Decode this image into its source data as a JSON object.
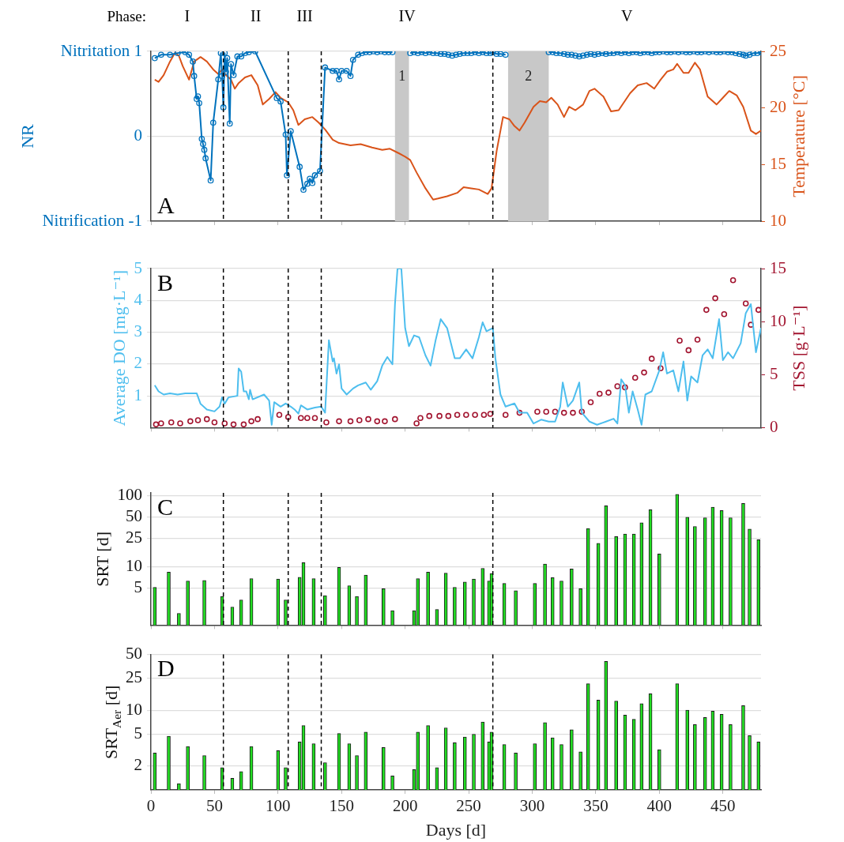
{
  "chart_data": [
    {
      "type": "line",
      "annotations": [
        "A",
        "Phase:",
        "I",
        "II",
        "III",
        "IV",
        "V"
      ],
      "ylabel": "NR",
      "y2label": "Temperature [°C]",
      "xlim": [
        0,
        480
      ],
      "xticks": [
        0,
        50,
        100,
        150,
        200,
        250,
        300,
        350,
        400,
        450
      ],
      "ylim": [
        -1,
        1
      ],
      "yticks": [
        {
          "value": -1,
          "label": "Nitrification -1"
        },
        0,
        {
          "value": 1,
          "label": "Nitritation 1"
        }
      ],
      "y2lim": [
        10,
        25
      ],
      "y2ticks": [
        10,
        15,
        20,
        25
      ],
      "grid": "y",
      "tick_labels": "y",
      "ref_lines": [
        {
          "axis": "x",
          "value": 57,
          "color": "#000000",
          "line_style": "dashed"
        },
        {
          "axis": "x",
          "value": 108,
          "color": "#000000",
          "line_style": "dashed"
        },
        {
          "axis": "x",
          "value": 134,
          "color": "#000000",
          "line_style": "dashed"
        },
        {
          "axis": "x",
          "value": 269,
          "color": "#000000",
          "line_style": "dashed"
        }
      ],
      "bands": [
        {
          "axis": "x",
          "from": 192,
          "to": 203,
          "label": "1",
          "color": "#c8c8c8"
        },
        {
          "axis": "x",
          "from": 281,
          "to": 313,
          "label": "2",
          "color": "#c8c8c8"
        }
      ],
      "series": [
        {
          "marker": "circle",
          "color": "#0072bd",
          "x": [
            3,
            8,
            15,
            21,
            27,
            30,
            33,
            34,
            36,
            37,
            38,
            40,
            41,
            42,
            43,
            47,
            49,
            53,
            55,
            56,
            57,
            58,
            59,
            60,
            62,
            63,
            65,
            68,
            71,
            74,
            77,
            82,
            99,
            102,
            106,
            107,
            110,
            117,
            120,
            123,
            125,
            127,
            129,
            133,
            137,
            143,
            146,
            148,
            150,
            154,
            157,
            159,
            163,
            166,
            169,
            172,
            175,
            178,
            181,
            184,
            187,
            190,
            196,
            204,
            207,
            210,
            213,
            216,
            219,
            222,
            225,
            228,
            231,
            234,
            237,
            240,
            243,
            246,
            249,
            252,
            255,
            258,
            261,
            264,
            267,
            269,
            272,
            275,
            279,
            295,
            313,
            316,
            319,
            322,
            325,
            328,
            331,
            334,
            337,
            340,
            343,
            346,
            349,
            352,
            355,
            358,
            361,
            364,
            367,
            370,
            373,
            376,
            379,
            382,
            385,
            388,
            391,
            394,
            397,
            400,
            403,
            406,
            409,
            412,
            415,
            418,
            421,
            424,
            427,
            430,
            433,
            436,
            439,
            442,
            445,
            448,
            451,
            454,
            457,
            460,
            463,
            466,
            468,
            471,
            474,
            477,
            480
          ],
          "values": [
            0.92,
            0.96,
            0.96,
            0.98,
            0.99,
            0.96,
            0.88,
            0.71,
            0.44,
            0.47,
            0.39,
            -0.03,
            -0.09,
            -0.16,
            -0.26,
            -0.52,
            0.16,
            0.67,
            0.98,
            0.71,
            0.34,
            0.98,
            0.76,
            0.92,
            0.15,
            0.85,
            0.72,
            0.94,
            0.94,
            0.98,
            0.99,
            1.0,
            0.45,
            0.41,
            0.02,
            -0.46,
            0.06,
            -0.36,
            -0.63,
            -0.56,
            -0.5,
            -0.55,
            -0.46,
            -0.41,
            0.81,
            0.77,
            0.77,
            0.67,
            0.77,
            0.77,
            0.71,
            0.9,
            0.96,
            0.98,
            0.99,
            0.99,
            1.0,
            0.99,
            1.0,
            0.99,
            0.99,
            0.99,
            null,
            0.98,
            0.99,
            0.98,
            0.99,
            0.98,
            0.99,
            0.98,
            0.98,
            0.97,
            0.97,
            0.96,
            0.95,
            0.96,
            0.97,
            0.98,
            0.98,
            0.98,
            0.99,
            0.98,
            0.99,
            0.98,
            0.98,
            0.99,
            0.97,
            0.97,
            0.96,
            null,
            0.99,
            0.99,
            0.98,
            0.98,
            0.97,
            0.96,
            0.96,
            0.95,
            0.94,
            0.95,
            0.96,
            0.97,
            0.96,
            0.97,
            0.98,
            0.97,
            0.98,
            0.98,
            0.99,
            0.98,
            0.99,
            0.98,
            0.99,
            0.99,
            0.98,
            0.99,
            0.99,
            0.98,
            0.99,
            0.99,
            1.0,
            0.99,
            0.99,
            1.0,
            0.99,
            1.0,
            0.99,
            0.99,
            1.0,
            0.99,
            0.99,
            1.0,
            0.99,
            1.0,
            0.99,
            0.99,
            1.0,
            0.99,
            0.99,
            0.98,
            0.97,
            0.96,
            0.95,
            0.96,
            0.98,
            0.98,
            0.99
          ]
        },
        {
          "marker": "none",
          "axis": "y2",
          "color": "#d95319",
          "x": [
            3,
            6,
            10,
            15,
            19,
            22,
            25,
            30,
            34,
            39,
            44,
            49,
            53,
            56,
            59,
            63,
            66,
            69,
            74,
            79,
            84,
            88,
            93,
            98,
            102,
            108,
            112,
            116,
            121,
            127,
            132,
            137,
            143,
            148,
            157,
            165,
            174,
            182,
            188,
            195,
            200,
            204,
            209,
            216,
            222,
            226,
            233,
            241,
            246,
            252,
            258,
            265,
            268,
            272,
            277,
            282,
            286,
            290,
            294,
            301,
            306,
            311,
            315,
            320,
            325,
            329,
            334,
            340,
            345,
            349,
            356,
            362,
            368,
            377,
            383,
            390,
            396,
            401,
            406,
            411,
            414,
            419,
            423,
            428,
            432,
            438,
            445,
            450,
            455,
            461,
            466,
            472,
            476,
            480
          ],
          "values": [
            22.5,
            22.3,
            22.9,
            24.1,
            24.9,
            24.6,
            23.7,
            22.5,
            24.1,
            24.5,
            24.1,
            23.4,
            23.0,
            23.4,
            22.9,
            22.5,
            21.7,
            22.2,
            22.7,
            22.9,
            22.0,
            20.3,
            20.8,
            21.4,
            20.9,
            20.5,
            19.8,
            18.5,
            19.0,
            19.2,
            18.7,
            18.1,
            17.2,
            16.9,
            16.7,
            16.8,
            16.5,
            16.3,
            16.4,
            16.0,
            15.7,
            15.4,
            14.3,
            12.9,
            11.9,
            12.0,
            12.2,
            12.5,
            13.0,
            12.9,
            12.8,
            12.4,
            12.9,
            16.2,
            19.2,
            19.0,
            18.4,
            18.0,
            18.7,
            20.1,
            20.6,
            20.5,
            20.9,
            20.3,
            19.2,
            20.1,
            19.8,
            20.3,
            21.5,
            21.7,
            21.0,
            19.7,
            19.8,
            21.3,
            22.0,
            22.2,
            21.7,
            22.5,
            23.2,
            23.4,
            23.9,
            23.1,
            23.1,
            24.0,
            23.4,
            21.0,
            20.3,
            20.9,
            21.5,
            21.1,
            20.1,
            18.0,
            17.7,
            18.0
          ]
        }
      ]
    },
    {
      "type": "line",
      "annotations": [
        "B"
      ],
      "ylabel": "Average DO [mg·L⁻¹]",
      "y2label": "TSS [g·L⁻¹]",
      "xlim": [
        0,
        480
      ],
      "xticks": [
        0,
        50,
        100,
        150,
        200,
        250,
        300,
        350,
        400,
        450
      ],
      "ylim": [
        0,
        5
      ],
      "yticks": [
        1,
        2,
        3,
        4,
        5
      ],
      "y2lim": [
        0,
        15
      ],
      "y2ticks": [
        0,
        5,
        10,
        15
      ],
      "grid": "y",
      "tick_labels": "y",
      "ref_lines": [
        {
          "axis": "x",
          "value": 57,
          "color": "#000000",
          "line_style": "dashed"
        },
        {
          "axis": "x",
          "value": 108,
          "color": "#000000",
          "line_style": "dashed"
        },
        {
          "axis": "x",
          "value": 134,
          "color": "#000000",
          "line_style": "dashed"
        },
        {
          "axis": "x",
          "value": 269,
          "color": "#000000",
          "line_style": "dashed"
        }
      ],
      "series": [
        {
          "marker": "none",
          "color": "#4dbeee",
          "x": [
            3,
            6,
            10,
            15,
            21,
            27,
            36,
            39,
            44,
            50,
            54,
            56,
            58,
            61,
            68,
            69,
            71,
            73,
            75,
            77,
            78,
            80,
            89,
            93,
            95,
            97,
            102,
            106,
            110,
            113,
            116,
            118,
            123,
            129,
            134,
            137,
            140,
            143,
            144,
            146,
            148,
            150,
            154,
            159,
            163,
            169,
            173,
            178,
            182,
            186,
            190,
            192,
            194,
            197,
            200,
            203,
            207,
            211,
            216,
            220,
            224,
            228,
            233,
            239,
            243,
            248,
            253,
            258,
            261,
            264,
            269,
            271,
            275,
            279,
            286,
            290,
            296,
            301,
            307,
            313,
            318,
            322,
            324,
            328,
            332,
            337,
            339,
            345,
            351,
            358,
            364,
            367,
            370,
            373,
            376,
            379,
            383,
            386,
            389,
            394,
            400,
            403,
            406,
            411,
            415,
            419,
            422,
            425,
            430,
            434,
            438,
            442,
            447,
            450,
            454,
            458,
            464,
            468,
            472,
            476,
            480
          ],
          "values": [
            1.33,
            1.14,
            1.04,
            1.08,
            1.04,
            1.08,
            1.08,
            0.75,
            0.57,
            0.51,
            0.66,
            0.95,
            0.75,
            0.95,
            1.0,
            1.86,
            1.76,
            1.14,
            1.14,
            0.89,
            1.19,
            0.89,
            1.04,
            0.85,
            0.09,
            0.8,
            0.66,
            0.76,
            0.66,
            0.57,
            0.44,
            0.7,
            0.57,
            0.63,
            0.66,
            0.47,
            2.75,
            2.08,
            2.18,
            1.7,
            1.99,
            1.23,
            1.04,
            1.23,
            1.33,
            1.42,
            1.19,
            1.46,
            1.95,
            2.22,
            1.99,
            3.88,
            5.0,
            5.0,
            3.13,
            2.56,
            2.9,
            2.84,
            2.27,
            1.95,
            2.75,
            3.41,
            3.13,
            2.18,
            2.18,
            2.46,
            2.18,
            2.84,
            3.31,
            3.03,
            3.13,
            2.18,
            1.04,
            0.66,
            0.76,
            0.47,
            0.47,
            0.13,
            0.25,
            0.19,
            0.19,
            0.66,
            1.42,
            0.66,
            0.85,
            1.42,
            0.47,
            0.19,
            0.09,
            0.19,
            0.28,
            0.13,
            1.52,
            1.33,
            0.47,
            1.14,
            0.57,
            0.09,
            1.04,
            1.14,
            1.8,
            2.37,
            1.7,
            1.8,
            1.14,
            2.08,
            0.85,
            1.61,
            1.42,
            2.27,
            2.46,
            2.18,
            3.41,
            2.12,
            2.37,
            2.18,
            2.65,
            3.6,
            3.88,
            2.37,
            3.13
          ]
        },
        {
          "type": "scatter",
          "marker": "circle",
          "axis": "y2",
          "color": "#a2142f",
          "x": [
            4,
            8,
            16,
            23,
            31,
            37,
            44,
            50,
            58,
            65,
            73,
            79,
            84,
            101,
            108,
            118,
            123,
            129,
            138,
            148,
            157,
            164,
            171,
            178,
            184,
            192,
            209,
            212,
            219,
            227,
            234,
            241,
            248,
            255,
            262,
            267,
            279,
            290,
            304,
            311,
            318,
            325,
            332,
            339,
            346,
            353,
            360,
            367,
            373,
            381,
            388,
            394,
            401,
            416,
            423,
            430,
            437,
            444,
            451,
            458,
            468,
            472,
            478
          ],
          "values": [
            0.3,
            0.4,
            0.5,
            0.4,
            0.6,
            0.7,
            0.8,
            0.5,
            0.4,
            0.3,
            0.3,
            0.6,
            0.8,
            1.2,
            1.0,
            0.9,
            0.9,
            0.9,
            0.5,
            0.6,
            0.6,
            0.7,
            0.8,
            0.6,
            0.6,
            0.8,
            0.4,
            0.9,
            1.1,
            1.1,
            1.1,
            1.2,
            1.2,
            1.2,
            1.2,
            1.3,
            1.2,
            1.4,
            1.5,
            1.5,
            1.5,
            1.4,
            1.4,
            1.5,
            2.4,
            3.2,
            3.3,
            3.9,
            3.8,
            4.7,
            5.2,
            6.5,
            5.6,
            8.2,
            7.3,
            8.3,
            11.1,
            12.2,
            10.7,
            13.9,
            11.7,
            9.7,
            11.1
          ]
        }
      ]
    },
    {
      "type": "bar",
      "annotations": [
        "C"
      ],
      "ylabel": "SRT [d]",
      "xlim": [
        0,
        480
      ],
      "xticks": [
        0,
        50,
        100,
        150,
        200,
        250,
        300,
        350,
        400,
        450
      ],
      "log": "y",
      "ylim": [
        1.5,
        110
      ],
      "yticks": [
        5,
        10,
        25,
        50,
        100
      ],
      "grid": "y",
      "tick_labels": "y",
      "ref_lines": [
        {
          "axis": "x",
          "value": 57,
          "color": "#000000",
          "line_style": "dashed"
        },
        {
          "axis": "x",
          "value": 108,
          "color": "#000000",
          "line_style": "dashed"
        },
        {
          "axis": "x",
          "value": 134,
          "color": "#000000",
          "line_style": "dashed"
        },
        {
          "axis": "x",
          "value": 269,
          "color": "#000000",
          "line_style": "dashed"
        }
      ],
      "color": "#22dd22",
      "x": [
        3,
        14,
        22,
        29,
        42,
        56,
        64,
        71,
        79,
        100,
        106,
        117,
        120,
        128,
        137,
        148,
        156,
        162,
        169,
        183,
        190,
        207,
        210,
        218,
        225,
        232,
        239,
        247,
        254,
        261,
        266,
        268,
        278,
        287,
        302,
        310,
        316,
        323,
        331,
        338,
        344,
        352,
        358,
        366,
        373,
        380,
        386,
        393,
        400,
        414,
        422,
        428,
        436,
        442,
        449,
        456,
        466,
        471,
        478
      ],
      "values": [
        5.1,
        8.4,
        2.2,
        6.3,
        6.4,
        3.8,
        2.7,
        3.4,
        6.8,
        6.7,
        3.4,
        7.1,
        11.4,
        6.8,
        3.9,
        9.8,
        5.4,
        3.8,
        7.6,
        4.9,
        2.4,
        2.4,
        6.8,
        8.4,
        2.5,
        8.1,
        5.1,
        6.1,
        6.7,
        9.5,
        6.3,
        8.0,
        5.8,
        4.6,
        5.8,
        10.9,
        7.0,
        6.3,
        9.3,
        4.9,
        34.5,
        21.4,
        72.4,
        26.6,
        29,
        29,
        41.8,
        63.5,
        15.1,
        105,
        50,
        37,
        49,
        69,
        62,
        49,
        78,
        34,
        24
      ]
    },
    {
      "type": "bar",
      "annotations": [
        "D"
      ],
      "ylabel": "SRT$_{Aer}$ [d]",
      "xlabel": "Days [d]",
      "xlim": [
        0,
        480
      ],
      "xticks": [
        0,
        50,
        100,
        150,
        200,
        250,
        300,
        350,
        400,
        450
      ],
      "log": "y",
      "ylim": [
        1,
        50
      ],
      "yticks": [
        2,
        5,
        10,
        25,
        50
      ],
      "grid": "y",
      "ref_lines": [
        {
          "axis": "x",
          "value": 57,
          "color": "#000000",
          "line_style": "dashed"
        },
        {
          "axis": "x",
          "value": 108,
          "color": "#000000",
          "line_style": "dashed"
        },
        {
          "axis": "x",
          "value": 134,
          "color": "#000000",
          "line_style": "dashed"
        },
        {
          "axis": "x",
          "value": 269,
          "color": "#000000",
          "line_style": "dashed"
        }
      ],
      "color": "#22dd22",
      "x": [
        3,
        14,
        22,
        29,
        42,
        56,
        64,
        71,
        79,
        100,
        106,
        117,
        120,
        128,
        137,
        148,
        156,
        162,
        169,
        183,
        190,
        207,
        210,
        218,
        225,
        232,
        239,
        247,
        254,
        261,
        266,
        268,
        278,
        287,
        302,
        310,
        316,
        323,
        331,
        338,
        344,
        352,
        358,
        366,
        373,
        380,
        386,
        393,
        400,
        414,
        422,
        428,
        436,
        442,
        449,
        456,
        466,
        471,
        478
      ],
      "values": [
        2.9,
        4.7,
        1.2,
        3.5,
        2.7,
        1.9,
        1.4,
        1.7,
        3.5,
        3.1,
        1.9,
        4.0,
        6.4,
        3.8,
        2.2,
        5.1,
        3.8,
        2.7,
        5.3,
        3.4,
        1.5,
        1.8,
        5.3,
        6.4,
        1.9,
        6.0,
        3.9,
        4.6,
        5.0,
        7.1,
        4.0,
        5.3,
        3.7,
        2.9,
        3.8,
        7.0,
        4.5,
        3.7,
        5.7,
        3.0,
        21.5,
        13.4,
        40.9,
        13.0,
        8.7,
        7.7,
        12.1,
        16.1,
        3.2,
        21.5,
        10.0,
        6.6,
        8.1,
        9.7,
        8.9,
        6.6,
        11.4,
        4.8,
        4.0
      ]
    }
  ]
}
